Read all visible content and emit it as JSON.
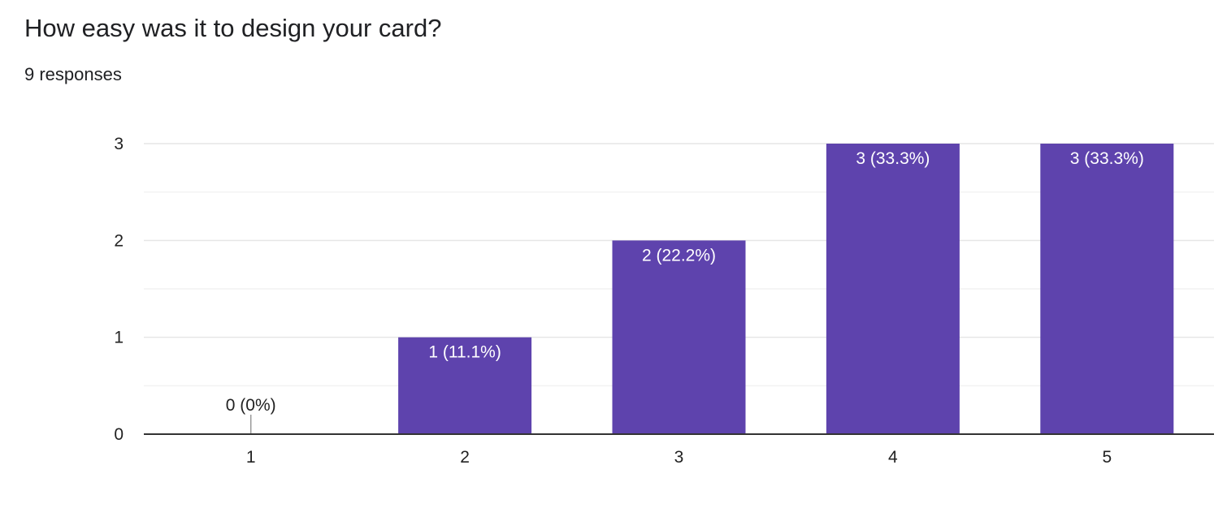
{
  "question": {
    "title": "How easy was it to design your card?",
    "responses": "9 responses"
  },
  "colors": {
    "bar": "#5e43ad",
    "grid_major": "#e6e6e6",
    "grid_minor": "#f2f2f2",
    "axis": "#333333",
    "label_inside": "#ffffff",
    "label_outside": "#222222"
  },
  "chart_data": {
    "type": "bar",
    "categories": [
      "1",
      "2",
      "3",
      "4",
      "5"
    ],
    "values": [
      0,
      1,
      2,
      3,
      3
    ],
    "data_labels": [
      "0 (0%)",
      "1 (11.1%)",
      "2 (22.2%)",
      "3 (33.3%)",
      "3 (33.3%)"
    ],
    "y_ticks": [
      "0",
      "1",
      "2",
      "3"
    ],
    "ylim": [
      0,
      3
    ],
    "grid": true,
    "legend": "none",
    "xlabel": "",
    "ylabel": ""
  }
}
